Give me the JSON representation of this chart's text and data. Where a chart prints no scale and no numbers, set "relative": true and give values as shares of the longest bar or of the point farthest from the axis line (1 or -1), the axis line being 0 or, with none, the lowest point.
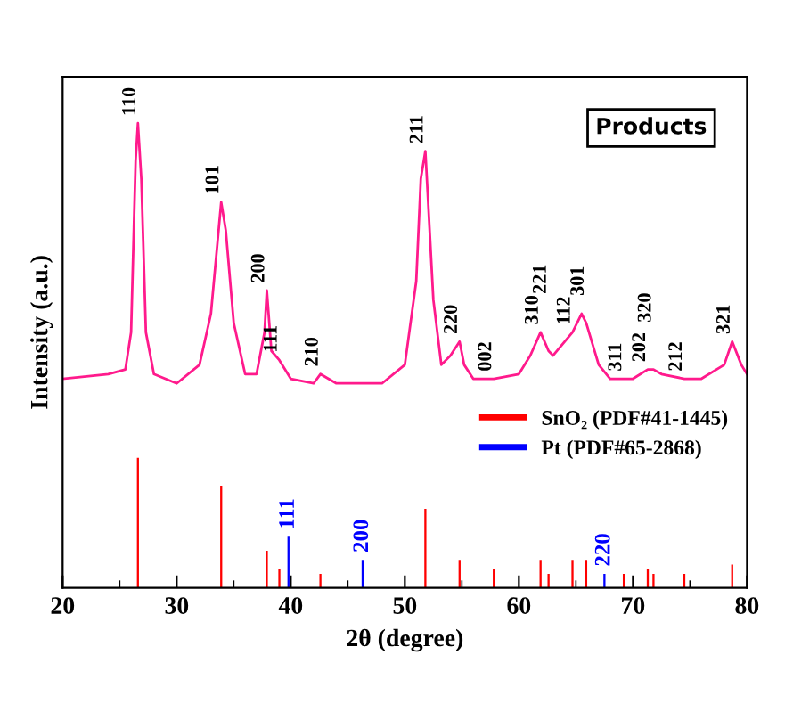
{
  "chart_data": {
    "type": "line",
    "relative": true,
    "xlabel": "2θ (degree)",
    "ylabel": "Intensity (a.u.)",
    "xlim": [
      20,
      80
    ],
    "xticks": [
      20,
      30,
      40,
      50,
      60,
      70,
      80
    ],
    "legend": "right",
    "grid": false,
    "series": [
      {
        "color": "#ff1a8c",
        "x": [
          20,
          24,
          25.5,
          26,
          26.4,
          26.6,
          26.9,
          27.3,
          28,
          30,
          32,
          33,
          33.9,
          34.3,
          35,
          36,
          37,
          37.7,
          37.9,
          38.3,
          39,
          40,
          42,
          42.6,
          44,
          48,
          50,
          51,
          51.4,
          51.8,
          52,
          52.5,
          53.2,
          54,
          54.8,
          55.2,
          56,
          57.8,
          60,
          61,
          61.9,
          62.6,
          63,
          64.7,
          65.5,
          65.9,
          67,
          68,
          69.2,
          70,
          71.3,
          71.8,
          72.5,
          74.5,
          76,
          78,
          78.7,
          79.5,
          80
        ],
        "values": [
          0.45,
          0.46,
          0.47,
          0.55,
          0.92,
          1.0,
          0.88,
          0.55,
          0.46,
          0.44,
          0.48,
          0.59,
          0.83,
          0.77,
          0.57,
          0.46,
          0.46,
          0.55,
          0.64,
          0.51,
          0.49,
          0.45,
          0.44,
          0.46,
          0.44,
          0.44,
          0.48,
          0.66,
          0.88,
          0.94,
          0.85,
          0.62,
          0.48,
          0.5,
          0.53,
          0.48,
          0.45,
          0.45,
          0.46,
          0.5,
          0.55,
          0.51,
          0.5,
          0.55,
          0.59,
          0.57,
          0.48,
          0.45,
          0.45,
          0.45,
          0.47,
          0.47,
          0.46,
          0.45,
          0.45,
          0.48,
          0.53,
          0.48,
          0.46
        ]
      },
      {
        "type": "bar",
        "name": "SnO₂ (PDF#41-1445)",
        "color": "#ff0000",
        "x": [
          26.6,
          33.9,
          37.9,
          39.0,
          42.6,
          51.8,
          54.8,
          57.8,
          61.9,
          62.6,
          64.7,
          65.9,
          69.2,
          71.3,
          71.8,
          74.5,
          78.7
        ],
        "values": [
          0.28,
          0.22,
          0.08,
          0.04,
          0.03,
          0.17,
          0.06,
          0.04,
          0.06,
          0.03,
          0.06,
          0.06,
          0.03,
          0.04,
          0.03,
          0.03,
          0.05
        ]
      },
      {
        "type": "bar",
        "name": "Pt (PDF#65-2868)",
        "color": "#0000ff",
        "x": [
          39.8,
          46.3,
          67.5
        ],
        "values": [
          0.11,
          0.06,
          0.03
        ]
      }
    ],
    "annotations": [
      "Products",
      {
        "text": "110",
        "x": 26.6,
        "y": 1.0
      },
      {
        "text": "101",
        "x": 33.9,
        "y": 0.83
      },
      {
        "text": "200",
        "x": 37.9,
        "y": 0.64
      },
      {
        "text": "111",
        "x": 39.0,
        "y": 0.49
      },
      {
        "text": "210",
        "x": 42.6,
        "y": 0.46
      },
      {
        "text": "211",
        "x": 51.8,
        "y": 0.94
      },
      {
        "text": "220",
        "x": 54.8,
        "y": 0.53
      },
      {
        "text": "002",
        "x": 57.8,
        "y": 0.45
      },
      {
        "text": "310",
        "x": 61.9,
        "y": 0.55
      },
      {
        "text": "221",
        "x": 62.6,
        "y": 0.51
      },
      {
        "text": "112",
        "x": 64.7,
        "y": 0.55
      },
      {
        "text": "301",
        "x": 65.9,
        "y": 0.57
      },
      {
        "text": "311",
        "x": 69.2,
        "y": 0.45
      },
      {
        "text": "202",
        "x": 71.3,
        "y": 0.47
      },
      {
        "text": "320",
        "x": 71.8,
        "y": 0.47
      },
      {
        "text": "212",
        "x": 74.5,
        "y": 0.45
      },
      {
        "text": "321",
        "x": 78.7,
        "y": 0.53
      },
      {
        "text": "111",
        "x": 39.8,
        "y": 0.11
      },
      {
        "text": "200",
        "x": 46.3,
        "y": 0.06
      },
      {
        "text": "220",
        "x": 67.5,
        "y": 0.03
      }
    ]
  }
}
